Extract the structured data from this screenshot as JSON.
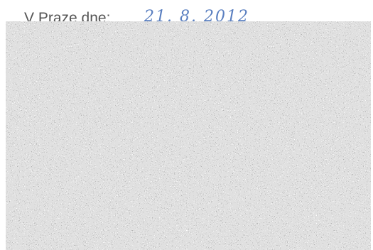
{
  "header": {
    "label": "V Praze dne:",
    "handwritten_date": "21. 8. 2012"
  }
}
